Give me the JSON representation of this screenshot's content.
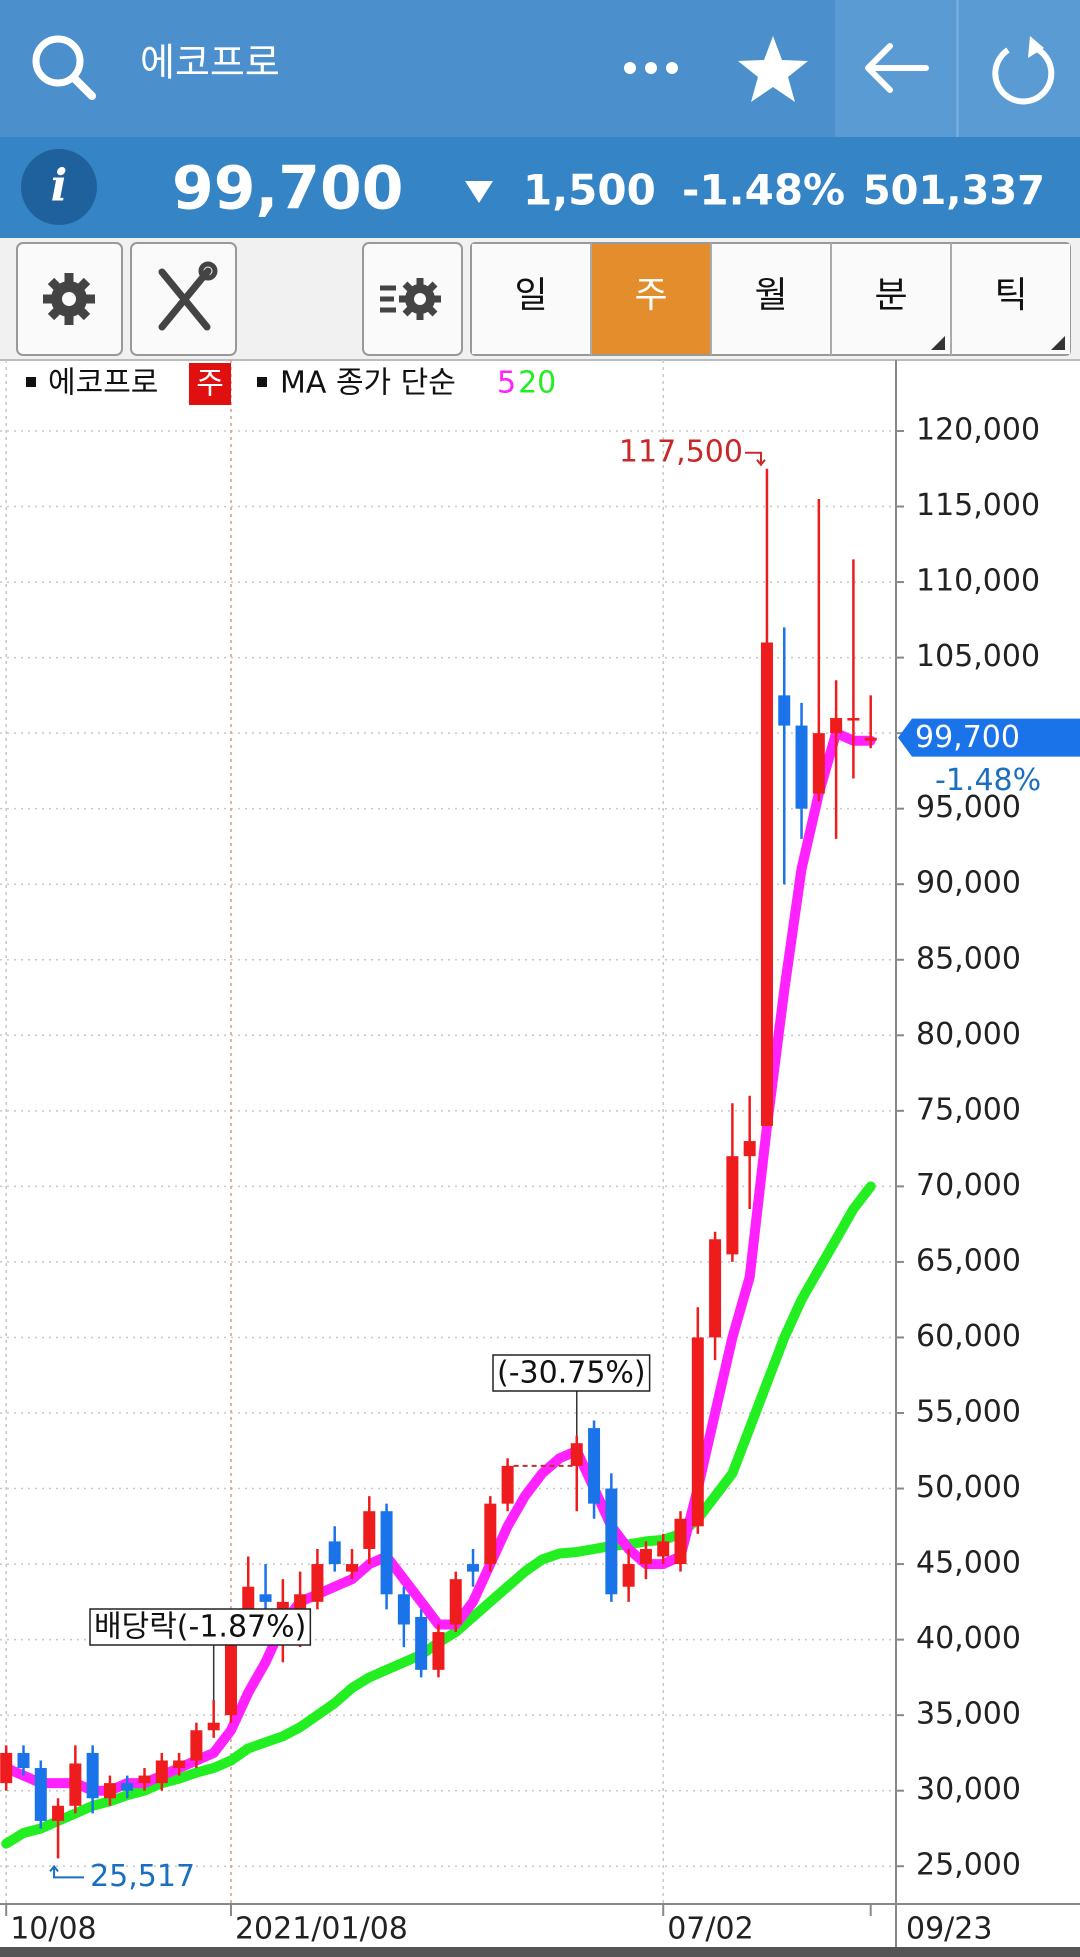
{
  "header": {
    "title": "에코프로"
  },
  "price_bar": {
    "price": "99,700",
    "change": "1,500",
    "rate": "-1.48%",
    "volume": "501,337"
  },
  "tabs": [
    "일",
    "주",
    "월",
    "분",
    "틱"
  ],
  "legend": {
    "name": "에코프로",
    "period": "주",
    "ma_label": "MA 종가 단순"
  },
  "chart_data": {
    "type": "candlestick",
    "categories": [
      "10/08",
      null,
      null,
      null,
      null,
      null,
      null,
      null,
      null,
      null,
      null,
      null,
      null,
      "2021/01/08",
      null,
      null,
      null,
      null,
      null,
      null,
      null,
      null,
      null,
      null,
      null,
      null,
      null,
      null,
      null,
      null,
      null,
      null,
      null,
      null,
      null,
      null,
      null,
      null,
      "07/02",
      null,
      null,
      null,
      null,
      null,
      null,
      null,
      null,
      null,
      null,
      null,
      "09/23"
    ],
    "open": [
      30500,
      32500,
      31500,
      28000,
      29000,
      32500,
      29500,
      30500,
      30500,
      30500,
      31500,
      32000,
      34000,
      35000,
      41000,
      43000,
      41500,
      41000,
      42500,
      46500,
      44500,
      46000,
      48500,
      43000,
      41500,
      38000,
      41000,
      45000,
      45000,
      49000,
      null,
      null,
      null,
      51500,
      54000,
      50000,
      43500,
      45000,
      45500,
      45000,
      47500,
      60000,
      65500,
      72000,
      74000,
      102500,
      100500,
      96000,
      100000,
      101000,
      99500
    ],
    "high": [
      33000,
      33000,
      32000,
      29500,
      33000,
      33000,
      31000,
      31000,
      31500,
      32500,
      32500,
      34500,
      36000,
      42000,
      45500,
      45000,
      44000,
      44500,
      46000,
      47500,
      46000,
      49500,
      49000,
      43500,
      42000,
      41000,
      44500,
      46000,
      49500,
      52000,
      null,
      null,
      null,
      53500,
      54500,
      51000,
      46000,
      46500,
      47000,
      48500,
      62000,
      67000,
      75500,
      76000,
      117500,
      107000,
      102000,
      115500,
      103500,
      111500,
      102500
    ],
    "low": [
      30000,
      31000,
      27500,
      25517,
      28500,
      28500,
      29000,
      29500,
      30000,
      30000,
      31000,
      31500,
      33500,
      34500,
      40000,
      41000,
      38500,
      39500,
      42000,
      44500,
      44000,
      45000,
      42000,
      39500,
      37500,
      37500,
      40500,
      43500,
      44500,
      48500,
      null,
      null,
      null,
      48500,
      48000,
      42500,
      42500,
      44000,
      45000,
      44500,
      47000,
      58500,
      65000,
      68500,
      74000,
      90000,
      93000,
      95500,
      93000,
      97000,
      99000
    ],
    "close": [
      32500,
      31500,
      28000,
      29000,
      31800,
      29500,
      30500,
      30000,
      31000,
      32000,
      32000,
      34000,
      34500,
      41000,
      43500,
      42500,
      42500,
      43000,
      45000,
      45000,
      45000,
      48500,
      43000,
      41000,
      38000,
      40500,
      44000,
      44500,
      49000,
      51500,
      null,
      null,
      null,
      53000,
      49000,
      43000,
      45000,
      46000,
      46500,
      48000,
      60000,
      66500,
      72000,
      73000,
      106000,
      100500,
      95000,
      100000,
      101000,
      101000,
      99700
    ],
    "up_color": "#ee1c1c",
    "down_color": "#1a73e8",
    "series": [
      {
        "name": "5",
        "color": "#ff22ff",
        "values": [
          31500,
          31000,
          30500,
          30500,
          30500,
          30000,
          30000,
          30500,
          30500,
          31000,
          31500,
          32000,
          32500,
          34000,
          36500,
          38500,
          41000,
          42500,
          43000,
          43500,
          44000,
          45000,
          45500,
          44000,
          42500,
          41000,
          41000,
          42500,
          45000,
          47500,
          49500,
          51000,
          52000,
          52500,
          50000,
          47500,
          46000,
          45000,
          45000,
          45500,
          50000,
          55000,
          60000,
          64000,
          74000,
          83000,
          91000,
          96000,
          100000,
          99500,
          99500
        ]
      },
      {
        "name": "20",
        "color": "#22ee22",
        "values": [
          26500,
          27200,
          27500,
          28000,
          28500,
          29000,
          29300,
          29700,
          30000,
          30500,
          30800,
          31200,
          31500,
          32000,
          32800,
          33200,
          33600,
          34200,
          35000,
          35800,
          36800,
          37500,
          38000,
          38500,
          39000,
          39800,
          40500,
          41500,
          42500,
          43500,
          44500,
          45300,
          45700,
          45800,
          46000,
          46200,
          46300,
          46500,
          46600,
          47000,
          48000,
          49500,
          51000,
          54000,
          57000,
          60000,
          62500,
          64500,
          66500,
          68500,
          70000
        ]
      }
    ],
    "ylim": [
      22500,
      124500
    ],
    "yticks": [
      {
        "value": 25000,
        "label": "25,000"
      },
      {
        "value": 30000,
        "label": "30,000"
      },
      {
        "value": 35000,
        "label": "35,000"
      },
      {
        "value": 40000,
        "label": "40,000"
      },
      {
        "value": 45000,
        "label": "45,000"
      },
      {
        "value": 50000,
        "label": "50,000"
      },
      {
        "value": 55000,
        "label": "55,000"
      },
      {
        "value": 60000,
        "label": "60,000"
      },
      {
        "value": 65000,
        "label": "65,000"
      },
      {
        "value": 70000,
        "label": "70,000"
      },
      {
        "value": 75000,
        "label": "75,000"
      },
      {
        "value": 80000,
        "label": "80,000"
      },
      {
        "value": 85000,
        "label": "85,000"
      },
      {
        "value": 90000,
        "label": "90,000"
      },
      {
        "value": 95000,
        "label": "95,000"
      },
      {
        "value": 100000,
        "label": "100,000"
      },
      {
        "value": 105000,
        "label": "105,000"
      },
      {
        "value": 110000,
        "label": "110,000"
      },
      {
        "value": 115000,
        "label": "115,000"
      },
      {
        "value": 120000,
        "label": "120,000"
      }
    ],
    "grid": true,
    "annotations": [
      {
        "value": 117500,
        "label": "117,500"
      },
      {
        "value": 25517,
        "label": "25,517"
      }
    ],
    "notes": [
      "배당락(-1.87%)",
      "(-30.75%)"
    ],
    "price_tag": {
      "value": 99700,
      "label": "99,700"
    },
    "price_tag_rate": "-1.48%"
  }
}
